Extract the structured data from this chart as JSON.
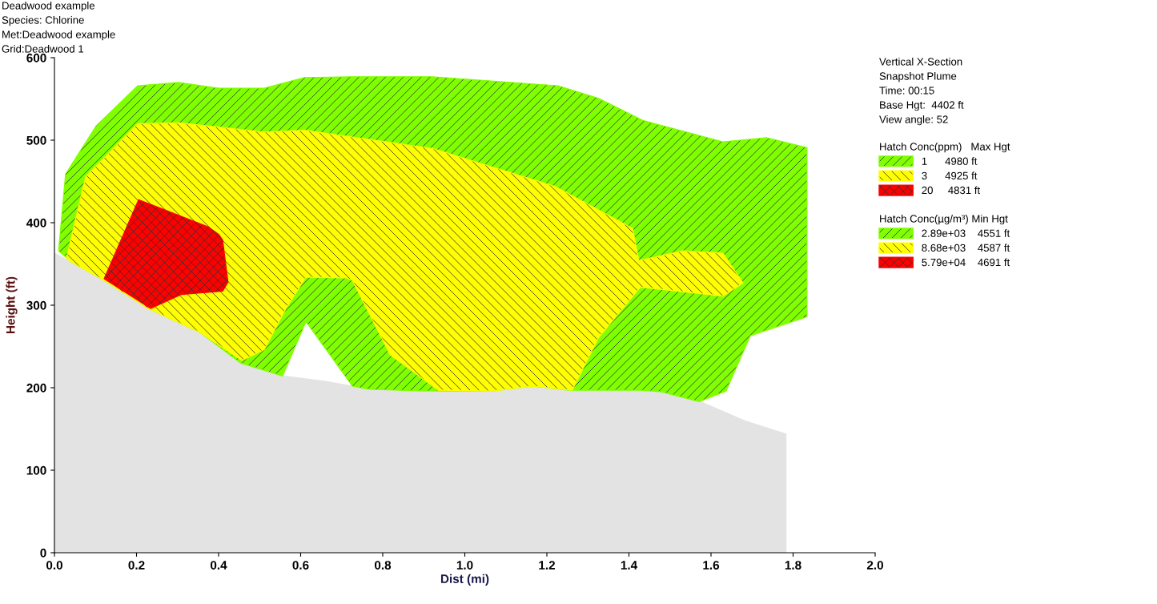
{
  "chart_data": {
    "type": "area",
    "title": "Deadwood example",
    "annotations": [
      "Species: Chlorine",
      "Met:Deadwood example",
      "Grid:Deadwood 1",
      "Vertical X-Section",
      "Snapshot Plume",
      "Time: 00:15",
      "Base Hgt:  4402 ft",
      "View angle: 52",
      "Hatch Conc(µg/m³) Min Hgt",
      "2.89e+03    4551 ft",
      "8.68e+03    4587 ft",
      "5.79e+04    4691 ft"
    ],
    "xlabel": "Dist (mi)",
    "ylabel": "Height (ft)",
    "xlim": [
      0,
      2
    ],
    "xticks": [
      {
        "value": 0,
        "label": "0.0"
      },
      0.2,
      0.4,
      0.6,
      0.8,
      {
        "value": 1,
        "label": "1.0"
      },
      1.2,
      1.4,
      1.6,
      1.8,
      {
        "value": 2,
        "label": "2.0"
      }
    ],
    "ylim": [
      0,
      600
    ],
    "yticks": [
      0,
      100,
      200,
      300,
      400,
      500,
      600
    ],
    "grid": false,
    "legend": "right",
    "legend_title": "Hatch Conc(ppm)   Max Hgt",
    "series": [
      {
        "color": "#e3e3e3",
        "x": [
          0,
          0.039,
          0.121,
          0.228,
          0.355,
          0.453,
          0.56,
          0.658,
          0.726,
          0.765,
          0.901,
          1.067,
          1.165,
          1.253,
          1.428,
          1.479,
          1.575,
          1.682,
          1.783,
          1.783,
          0
        ],
        "values": [
          363,
          353,
          330,
          296,
          267,
          230,
          214,
          208,
          202,
          198,
          196,
          196,
          202,
          197,
          197,
          195,
          183,
          160,
          144,
          0,
          0
        ]
      },
      {
        "name": "1      4980 ft",
        "color": "#80ff00",
        "x": [
          0.01,
          0.027,
          0.101,
          0.203,
          0.302,
          0.4,
          0.511,
          0.609,
          0.726,
          0.921,
          1.227,
          1.325,
          1.434,
          1.629,
          1.735,
          1.834,
          1.834,
          1.696,
          1.637,
          1.571,
          1.479,
          1.428,
          1.253,
          1.165,
          1.067,
          0.901,
          0.765,
          0.726,
          0.613,
          0.556,
          0.453,
          0.355,
          0.228,
          0.121,
          0.039
        ],
        "values": [
          366,
          459,
          517,
          566,
          570,
          563,
          563,
          576,
          577,
          577,
          566,
          551,
          524,
          498,
          503,
          491,
          286,
          263,
          196,
          183,
          195,
          197,
          197,
          202,
          196,
          196,
          198,
          202,
          280,
          214,
          230,
          267,
          296,
          330,
          353
        ]
      },
      {
        "name": "3      4925 ft",
        "color": "#ffff00",
        "x": [
          0.029,
          0.076,
          0.203,
          0.302,
          0.511,
          0.609,
          0.921,
          1.22,
          1.409,
          1.424,
          1.532,
          1.629,
          1.678,
          1.629,
          1.428,
          1.325,
          1.262,
          1.165,
          1.067,
          0.935,
          0.818,
          0.726,
          0.712,
          0.613,
          0.564,
          0.511,
          0.457,
          0.355,
          0.228,
          0.121,
          0.039
        ],
        "values": [
          357,
          456,
          520,
          521,
          510,
          512,
          490,
          444,
          393,
          354,
          366,
          363,
          327,
          311,
          322,
          260,
          197,
          202,
          196,
          197,
          240,
          330,
          333,
          334,
          296,
          246,
          233,
          267,
          296,
          330,
          353
        ]
      },
      {
        "name": "20     4831 ft",
        "color": "#ff0000",
        "x": [
          0.205,
          0.375,
          0.4,
          0.41,
          0.423,
          0.41,
          0.31,
          0.234,
          0.121
        ],
        "values": [
          428,
          395,
          386,
          379,
          328,
          317,
          313,
          296,
          332
        ]
      }
    ]
  }
}
